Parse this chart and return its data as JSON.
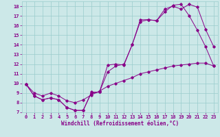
{
  "xlabel": "Windchill (Refroidissement éolien,°C)",
  "bg_color": "#cce8e8",
  "grid_color": "#99cccc",
  "line_color": "#880088",
  "xlim": [
    -0.5,
    23.5
  ],
  "ylim": [
    7,
    18.5
  ],
  "xticks": [
    0,
    1,
    2,
    3,
    4,
    5,
    6,
    7,
    8,
    9,
    10,
    11,
    12,
    13,
    14,
    15,
    16,
    17,
    18,
    19,
    20,
    21,
    22,
    23
  ],
  "yticks": [
    7,
    8,
    9,
    10,
    11,
    12,
    13,
    14,
    15,
    16,
    17,
    18
  ],
  "line1_x": [
    0,
    1,
    2,
    3,
    4,
    5,
    6,
    7,
    8,
    9,
    10,
    11,
    12,
    13,
    14,
    15,
    16,
    17,
    18,
    19,
    20,
    21,
    22,
    23
  ],
  "line1_y": [
    9.9,
    8.7,
    8.3,
    8.5,
    8.3,
    7.5,
    7.2,
    7.2,
    9.1,
    9.1,
    11.9,
    12.0,
    11.9,
    14.0,
    16.4,
    16.6,
    16.5,
    17.7,
    18.0,
    17.7,
    18.2,
    17.9,
    15.6,
    13.8
  ],
  "line2_x": [
    0,
    1,
    2,
    3,
    4,
    5,
    6,
    7,
    8,
    9,
    10,
    11,
    12,
    13,
    14,
    15,
    16,
    17,
    18,
    19,
    20,
    21,
    22,
    23
  ],
  "line2_y": [
    9.9,
    8.7,
    8.3,
    8.5,
    8.3,
    7.5,
    7.2,
    7.2,
    9.0,
    9.1,
    11.2,
    11.8,
    12.0,
    14.0,
    16.6,
    16.6,
    16.5,
    17.4,
    18.1,
    18.2,
    17.0,
    15.5,
    13.8,
    11.8
  ],
  "line3_x": [
    0,
    1,
    2,
    3,
    4,
    5,
    6,
    7,
    8,
    9,
    10,
    11,
    12,
    13,
    14,
    15,
    16,
    17,
    18,
    19,
    20,
    21,
    22,
    23
  ],
  "line3_y": [
    9.9,
    9.0,
    8.7,
    9.0,
    8.7,
    8.2,
    8.0,
    8.3,
    8.8,
    9.2,
    9.7,
    10.0,
    10.3,
    10.6,
    11.0,
    11.2,
    11.4,
    11.6,
    11.8,
    11.9,
    12.0,
    12.1,
    12.1,
    11.8
  ],
  "marker": "D",
  "markersize": 1.8,
  "linewidth": 0.7,
  "tick_fontsize": 5,
  "xlabel_fontsize": 5.5
}
